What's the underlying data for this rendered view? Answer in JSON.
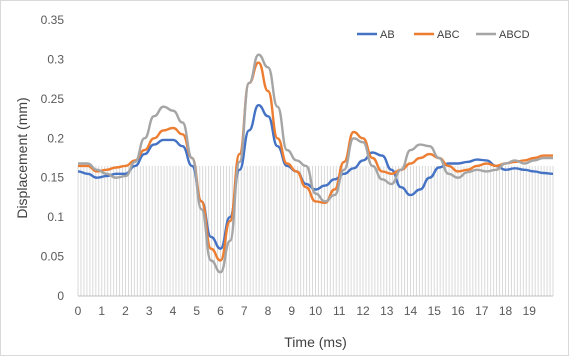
{
  "chart_data": {
    "type": "line",
    "title": "",
    "xlabel": "Time (ms)",
    "ylabel": "Displacement (mm)",
    "xlim": [
      0,
      20
    ],
    "ylim": [
      0,
      0.35
    ],
    "x_tick_labels": [
      "0",
      "1",
      "2",
      "3",
      "4",
      "5",
      "6",
      "7",
      "8",
      "9",
      "10",
      "11",
      "12",
      "13",
      "14",
      "15",
      "16",
      "17",
      "18",
      "19"
    ],
    "y_tick_values": [
      0,
      0.05,
      0.1,
      0.15,
      0.2,
      0.25,
      0.3,
      0.35
    ],
    "y_tick_labels": [
      "0",
      "0.05",
      "0.1",
      "0.15",
      "0.2",
      "0.25",
      "0.3",
      "0.35"
    ],
    "grid": false,
    "legend_position": "top-right",
    "background_bars": {
      "color": "#d9d9d9",
      "description": "dense vertical bars at 0.165 baseline"
    },
    "series": [
      {
        "name": "AB",
        "color": "#4472C4",
        "points": [
          [
            0,
            0.158
          ],
          [
            0.4,
            0.155
          ],
          [
            0.8,
            0.15
          ],
          [
            1.2,
            0.152
          ],
          [
            1.6,
            0.155
          ],
          [
            2,
            0.155
          ],
          [
            2.4,
            0.165
          ],
          [
            2.8,
            0.18
          ],
          [
            3.2,
            0.192
          ],
          [
            3.6,
            0.198
          ],
          [
            4,
            0.198
          ],
          [
            4.4,
            0.19
          ],
          [
            4.8,
            0.165
          ],
          [
            5.2,
            0.12
          ],
          [
            5.6,
            0.075
          ],
          [
            6,
            0.06
          ],
          [
            6.4,
            0.1
          ],
          [
            6.8,
            0.16
          ],
          [
            7.2,
            0.21
          ],
          [
            7.6,
            0.242
          ],
          [
            8,
            0.228
          ],
          [
            8.4,
            0.19
          ],
          [
            8.8,
            0.165
          ],
          [
            9.2,
            0.158
          ],
          [
            9.6,
            0.142
          ],
          [
            10,
            0.135
          ],
          [
            10.4,
            0.14
          ],
          [
            10.8,
            0.148
          ],
          [
            11.2,
            0.155
          ],
          [
            11.6,
            0.162
          ],
          [
            12,
            0.172
          ],
          [
            12.4,
            0.182
          ],
          [
            12.8,
            0.178
          ],
          [
            13.2,
            0.16
          ],
          [
            13.6,
            0.138
          ],
          [
            14,
            0.128
          ],
          [
            14.4,
            0.135
          ],
          [
            14.8,
            0.15
          ],
          [
            15.2,
            0.163
          ],
          [
            15.6,
            0.168
          ],
          [
            16,
            0.168
          ],
          [
            16.4,
            0.17
          ],
          [
            16.8,
            0.173
          ],
          [
            17.2,
            0.172
          ],
          [
            17.6,
            0.165
          ],
          [
            18,
            0.16
          ],
          [
            18.4,
            0.162
          ],
          [
            18.8,
            0.16
          ],
          [
            19.2,
            0.158
          ],
          [
            19.6,
            0.156
          ],
          [
            20,
            0.155
          ]
        ]
      },
      {
        "name": "ABC",
        "color": "#ED7D31",
        "points": [
          [
            0,
            0.165
          ],
          [
            0.4,
            0.165
          ],
          [
            0.8,
            0.158
          ],
          [
            1.2,
            0.16
          ],
          [
            1.6,
            0.163
          ],
          [
            2,
            0.165
          ],
          [
            2.4,
            0.172
          ],
          [
            2.8,
            0.185
          ],
          [
            3.2,
            0.2
          ],
          [
            3.6,
            0.21
          ],
          [
            4,
            0.213
          ],
          [
            4.4,
            0.205
          ],
          [
            4.8,
            0.175
          ],
          [
            5.2,
            0.12
          ],
          [
            5.6,
            0.06
          ],
          [
            6,
            0.045
          ],
          [
            6.4,
            0.095
          ],
          [
            6.8,
            0.18
          ],
          [
            7.2,
            0.27
          ],
          [
            7.6,
            0.296
          ],
          [
            8,
            0.26
          ],
          [
            8.4,
            0.2
          ],
          [
            8.8,
            0.168
          ],
          [
            9.2,
            0.158
          ],
          [
            9.6,
            0.138
          ],
          [
            10,
            0.12
          ],
          [
            10.4,
            0.118
          ],
          [
            10.8,
            0.135
          ],
          [
            11.2,
            0.17
          ],
          [
            11.6,
            0.208
          ],
          [
            12,
            0.2
          ],
          [
            12.4,
            0.175
          ],
          [
            12.8,
            0.158
          ],
          [
            13.2,
            0.155
          ],
          [
            13.6,
            0.16
          ],
          [
            14,
            0.168
          ],
          [
            14.4,
            0.175
          ],
          [
            14.8,
            0.18
          ],
          [
            15.2,
            0.175
          ],
          [
            15.6,
            0.165
          ],
          [
            16,
            0.158
          ],
          [
            16.4,
            0.16
          ],
          [
            16.8,
            0.165
          ],
          [
            17.2,
            0.168
          ],
          [
            17.6,
            0.165
          ],
          [
            18,
            0.168
          ],
          [
            18.4,
            0.17
          ],
          [
            18.8,
            0.172
          ],
          [
            19.2,
            0.175
          ],
          [
            19.6,
            0.178
          ],
          [
            20,
            0.178
          ]
        ]
      },
      {
        "name": "ABCD",
        "color": "#A5A5A5",
        "points": [
          [
            0,
            0.168
          ],
          [
            0.4,
            0.168
          ],
          [
            0.8,
            0.16
          ],
          [
            1.2,
            0.155
          ],
          [
            1.6,
            0.15
          ],
          [
            2,
            0.152
          ],
          [
            2.4,
            0.17
          ],
          [
            2.8,
            0.2
          ],
          [
            3.2,
            0.228
          ],
          [
            3.6,
            0.24
          ],
          [
            4,
            0.235
          ],
          [
            4.4,
            0.22
          ],
          [
            4.8,
            0.175
          ],
          [
            5.2,
            0.11
          ],
          [
            5.6,
            0.045
          ],
          [
            6,
            0.03
          ],
          [
            6.4,
            0.07
          ],
          [
            6.8,
            0.17
          ],
          [
            7.2,
            0.27
          ],
          [
            7.6,
            0.306
          ],
          [
            8,
            0.29
          ],
          [
            8.4,
            0.24
          ],
          [
            8.8,
            0.185
          ],
          [
            9.2,
            0.172
          ],
          [
            9.6,
            0.165
          ],
          [
            10,
            0.13
          ],
          [
            10.4,
            0.12
          ],
          [
            10.8,
            0.128
          ],
          [
            11.2,
            0.16
          ],
          [
            11.6,
            0.2
          ],
          [
            12,
            0.195
          ],
          [
            12.4,
            0.165
          ],
          [
            12.8,
            0.148
          ],
          [
            13.2,
            0.142
          ],
          [
            13.6,
            0.16
          ],
          [
            14,
            0.185
          ],
          [
            14.4,
            0.192
          ],
          [
            14.8,
            0.19
          ],
          [
            15.2,
            0.175
          ],
          [
            15.6,
            0.155
          ],
          [
            16,
            0.15
          ],
          [
            16.4,
            0.157
          ],
          [
            16.8,
            0.16
          ],
          [
            17.2,
            0.158
          ],
          [
            17.6,
            0.16
          ],
          [
            18,
            0.168
          ],
          [
            18.4,
            0.172
          ],
          [
            18.8,
            0.168
          ],
          [
            19.2,
            0.172
          ],
          [
            19.6,
            0.175
          ],
          [
            20,
            0.175
          ]
        ]
      }
    ]
  }
}
